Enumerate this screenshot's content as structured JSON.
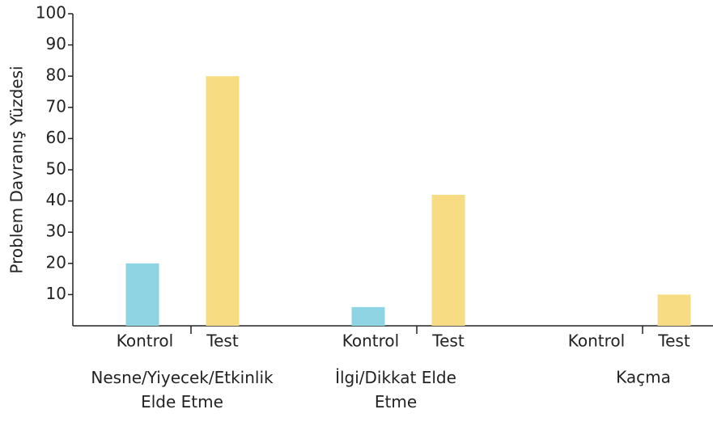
{
  "chart_data": {
    "type": "bar",
    "y_label": "Problem Davranış Yüzdesi",
    "categories": [
      "Nesne/Yiyecek/Etkinlik\nElde Etme",
      "İlgi/Dikkat Elde\nEtme",
      "Kaçma"
    ],
    "series": [
      {
        "name": "Kontrol",
        "color": "#8fd4e2",
        "values": [
          20,
          6,
          0
        ]
      },
      {
        "name": "Test",
        "color": "#f7dc84",
        "values": [
          80,
          42,
          10
        ]
      }
    ],
    "ylim": [
      0,
      100
    ],
    "yticks": [
      10,
      20,
      30,
      40,
      50,
      60,
      70,
      80,
      90,
      100
    ],
    "grid": false
  }
}
